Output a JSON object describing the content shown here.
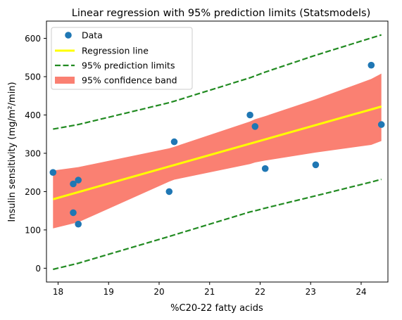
{
  "chart_data": {
    "type": "scatter",
    "title": "Linear regression with 95% prediction limits (Statsmodels)",
    "xlabel": "%C20-22 fatty acids",
    "ylabel": "Insulin sensitivity (mg/m²/min)",
    "xlim": [
      17.77,
      24.53
    ],
    "ylim": [
      -36,
      645
    ],
    "xticks": [
      18,
      19,
      20,
      21,
      22,
      23,
      24
    ],
    "yticks": [
      0,
      100,
      200,
      300,
      400,
      500,
      600
    ],
    "grid": false,
    "legend_position": "top-left",
    "legend": [
      {
        "label": "Data",
        "kind": "marker",
        "color": "#1f77b4"
      },
      {
        "label": "Regression line",
        "kind": "line",
        "color": "#ffff00"
      },
      {
        "label": "95% prediction limits",
        "kind": "dashed-line",
        "color": "#228b22"
      },
      {
        "label": "95% confidence band",
        "kind": "patch",
        "color": "#fa8072"
      }
    ],
    "data_points": [
      {
        "x": 17.9,
        "y": 250
      },
      {
        "x": 18.3,
        "y": 220
      },
      {
        "x": 18.3,
        "y": 145
      },
      {
        "x": 18.4,
        "y": 115
      },
      {
        "x": 18.4,
        "y": 230
      },
      {
        "x": 20.2,
        "y": 200
      },
      {
        "x": 20.3,
        "y": 330
      },
      {
        "x": 21.8,
        "y": 400
      },
      {
        "x": 21.9,
        "y": 370
      },
      {
        "x": 22.1,
        "y": 260
      },
      {
        "x": 23.1,
        "y": 270
      },
      {
        "x": 24.2,
        "y": 530
      },
      {
        "x": 24.4,
        "y": 375
      }
    ],
    "regression_line": {
      "x": [
        17.9,
        24.4
      ],
      "y": [
        180,
        422
      ]
    },
    "prediction_upper": {
      "x": [
        17.9,
        18.4,
        20.2,
        20.3,
        21.8,
        21.9,
        22.1,
        23.1,
        24.2,
        24.4
      ],
      "y": [
        363,
        375,
        432,
        436,
        497,
        502,
        512,
        556,
        601,
        609
      ]
    },
    "prediction_lower": {
      "x": [
        17.9,
        18.4,
        20.2,
        20.3,
        21.8,
        21.9,
        22.1,
        23.1,
        24.2,
        24.4
      ],
      "y": [
        -3,
        13,
        83,
        87,
        147,
        150,
        157,
        189,
        225,
        232
      ]
    },
    "confidence_upper": {
      "x": [
        17.9,
        18.4,
        20.2,
        20.3,
        21.8,
        21.9,
        22.1,
        23.1,
        24.2,
        24.4
      ],
      "y": [
        255,
        264,
        313,
        317,
        383,
        389,
        397,
        441,
        494,
        508
      ]
    },
    "confidence_lower": {
      "x": [
        17.9,
        18.4,
        20.2,
        20.3,
        21.8,
        21.9,
        22.1,
        23.1,
        24.2,
        24.4
      ],
      "y": [
        104,
        120,
        226,
        231,
        272,
        276,
        281,
        302,
        322,
        332
      ]
    }
  }
}
